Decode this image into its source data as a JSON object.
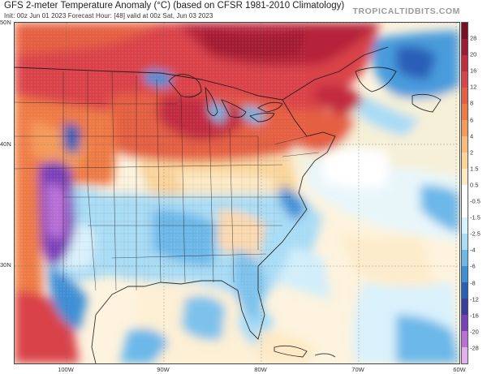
{
  "header": {
    "title": "GFS 2-meter Temperature Anomaly (°C) (based on CFSR 1981-2010 Climatology)",
    "subtitle": "Init: 00z Jun 01 2023   Forecast Hour: [48]   valid at 00z Sat, Jun 03 2023",
    "brand": "TROPICALTIDBITS.COM"
  },
  "map": {
    "lat_labels": [
      "50N",
      "40N",
      "30N"
    ],
    "lon_labels": [
      "100W",
      "90W",
      "80W",
      "70W",
      "60W"
    ]
  },
  "colorbar": {
    "labels": [
      "28",
      "20",
      "16",
      "12",
      "8",
      "6",
      "4",
      "2",
      "1.5",
      "0.5",
      "-0.5",
      "-1.5",
      "-2.5",
      "-4",
      "-6",
      "-8",
      "-12",
      "-16",
      "-20",
      "-28"
    ],
    "colors": [
      "#7a0f24",
      "#a11a33",
      "#c22c40",
      "#d9434a",
      "#e55e43",
      "#ee7a45",
      "#f49a5a",
      "#f8bb7a",
      "#fad49a",
      "#fde9c4",
      "#ffffff",
      "#ffffff",
      "#d9f1fb",
      "#a9dcf5",
      "#6cb8e9",
      "#3f8fd6",
      "#2a5fb8",
      "#3b3c9c",
      "#7a3fb8",
      "#b96fd6",
      "#e3b0ee"
    ]
  }
}
